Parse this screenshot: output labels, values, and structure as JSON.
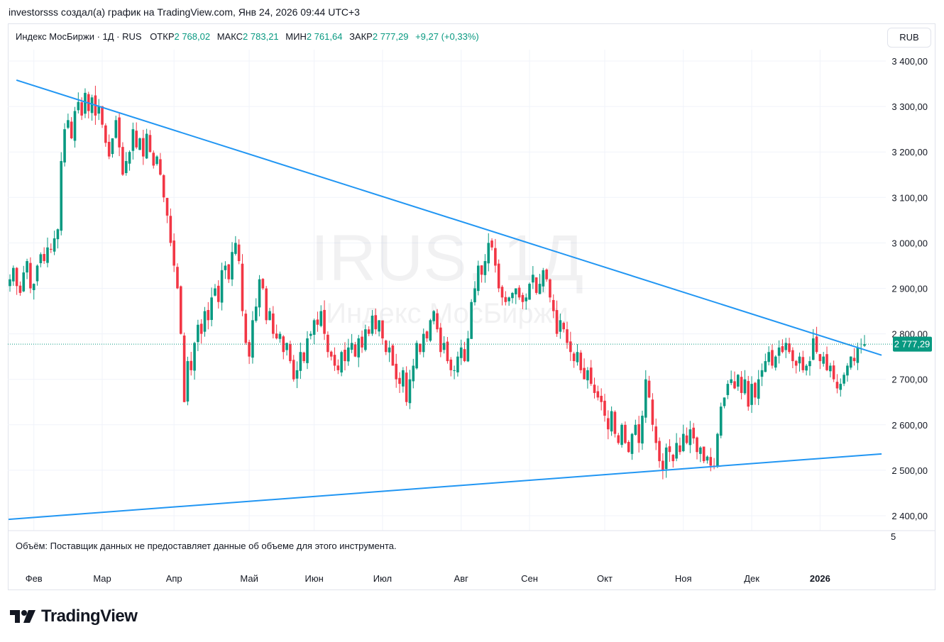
{
  "caption": "investorsss создал(а) график на TradingView.com, Янв 24, 2026 09:44 UTC+3",
  "legend": {
    "symbol": "Индекс МосБиржи · 1Д · RUS",
    "open_label": "ОТКР",
    "open": "2 768,02",
    "high_label": "МАКС",
    "high": "2 783,21",
    "low_label": "МИН",
    "low": "2 761,64",
    "close_label": "ЗАКР",
    "close": "2 777,29",
    "change": "+9,27 (+0,33%)"
  },
  "currency_button": "RUB",
  "watermark": {
    "ticker": "IRUS, 1Д",
    "name": "Индекс МосБиржи"
  },
  "volume_message": "Объём: Поставщик данных не предоставляет данные об объеме для этого инструмента.",
  "volume_axis_label": "5",
  "current_price_label": "2 777,29",
  "logo_text": "TradingView",
  "colors": {
    "up": "#089981",
    "down": "#f23645",
    "trendline": "#2196f3",
    "grid": "#f0f3fa"
  },
  "chart_data": {
    "type": "candlestick",
    "title": "Индекс МосБиржи · 1Д · RUS",
    "ylim": [
      2400,
      3400
    ],
    "y_ticks": [
      "2 400,00",
      "2 500,00",
      "2 600,00",
      "2 700,00",
      "2 800,00",
      "2 900,00",
      "3 000,00",
      "3 100,00",
      "3 200,00",
      "3 300,00",
      "3 400,00"
    ],
    "y_tick_values": [
      2400,
      2500,
      2600,
      2700,
      2800,
      2900,
      3000,
      3100,
      3200,
      3300,
      3400
    ],
    "x_ticks": [
      "Фев",
      "Мар",
      "Апр",
      "Май",
      "Июн",
      "Июл",
      "Авг",
      "Сен",
      "Окт",
      "Ноя",
      "Дек",
      "2026"
    ],
    "x_tick_candle_index": [
      7,
      27,
      48,
      70,
      89,
      109,
      132,
      152,
      174,
      197,
      217,
      237
    ],
    "last_price": 2777.29,
    "closes": [
      2920,
      2945,
      2905,
      2890,
      2935,
      2960,
      2900,
      2910,
      2950,
      2975,
      2960,
      2990,
      2985,
      3010,
      3030,
      3180,
      3250,
      3270,
      3230,
      3290,
      3310,
      3280,
      3330,
      3290,
      3320,
      3280,
      3300,
      3260,
      3220,
      3190,
      3230,
      3270,
      3210,
      3150,
      3180,
      3200,
      3250,
      3210,
      3230,
      3190,
      3240,
      3200,
      3170,
      3190,
      3150,
      3100,
      3060,
      3000,
      2950,
      2900,
      2800,
      2650,
      2740,
      2720,
      2780,
      2820,
      2800,
      2850,
      2830,
      2880,
      2900,
      2870,
      2940,
      2950,
      2920,
      2980,
      3000,
      2960,
      2850,
      2780,
      2750,
      2830,
      2860,
      2920,
      2900,
      2830,
      2850,
      2800,
      2790,
      2800,
      2760,
      2780,
      2740,
      2700,
      2720,
      2760,
      2740,
      2790,
      2800,
      2830,
      2820,
      2850,
      2800,
      2760,
      2750,
      2730,
      2720,
      2760,
      2740,
      2770,
      2780,
      2750,
      2790,
      2770,
      2810,
      2800,
      2840,
      2810,
      2830,
      2790,
      2760,
      2770,
      2730,
      2700,
      2690,
      2720,
      2650,
      2700,
      2730,
      2780,
      2760,
      2800,
      2790,
      2830,
      2850,
      2810,
      2760,
      2780,
      2740,
      2720,
      2720,
      2750,
      2770,
      2740,
      2790,
      2870,
      2900,
      2950,
      2930,
      2960,
      3000,
      2990,
      2950,
      2900,
      2880,
      2870,
      2880,
      2890,
      2900,
      2880,
      2870,
      2880,
      2910,
      2930,
      2890,
      2910,
      2940,
      2920,
      2880,
      2850,
      2800,
      2830,
      2810,
      2780,
      2760,
      2740,
      2760,
      2720,
      2700,
      2720,
      2690,
      2670,
      2660,
      2650,
      2620,
      2590,
      2630,
      2580,
      2560,
      2600,
      2560,
      2540,
      2580,
      2600,
      2560,
      2620,
      2700,
      2660,
      2600,
      2560,
      2520,
      2500,
      2550,
      2540,
      2520,
      2560,
      2540,
      2580,
      2560,
      2590,
      2570,
      2540,
      2550,
      2520,
      2530,
      2510,
      2510,
      2580,
      2640,
      2660,
      2690,
      2700,
      2680,
      2710,
      2670,
      2700,
      2640,
      2690,
      2660,
      2700,
      2720,
      2740,
      2760,
      2730,
      2750,
      2770,
      2760,
      2780,
      2760,
      2740,
      2730,
      2750,
      2720,
      2730,
      2740,
      2790,
      2760,
      2740,
      2750,
      2720,
      2730,
      2700,
      2680,
      2690,
      2710,
      2730,
      2750,
      2740,
      2770,
      2768.02,
      2777.29
    ],
    "trendlines": [
      {
        "name": "upper-resistance",
        "from": {
          "candle": 1.9,
          "price": 3358
        },
        "to": {
          "candle": 255,
          "price": 2753
        }
      },
      {
        "name": "lower-support",
        "from": {
          "candle": -0.4,
          "price": 2392
        },
        "to": {
          "candle": 255,
          "price": 2536
        }
      }
    ]
  }
}
